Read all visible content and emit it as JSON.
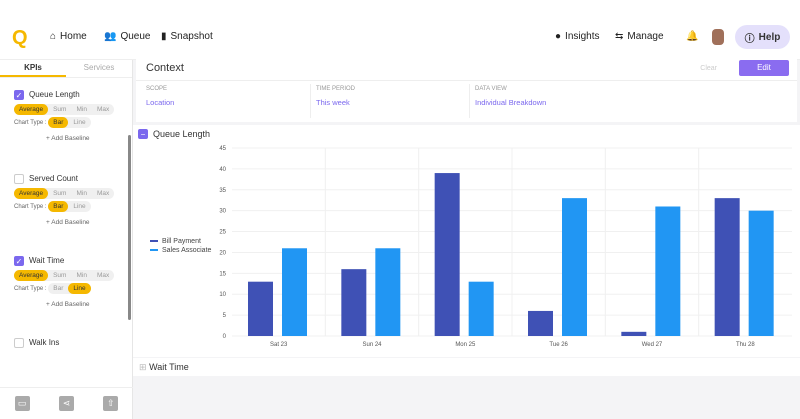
{
  "nav": {
    "home": "Home",
    "queue": "Queue",
    "snapshot": "Snapshot",
    "insights": "Insights",
    "manage": "Manage",
    "help": "Help"
  },
  "sidebar": {
    "tabs": [
      "KPIs",
      "Services"
    ],
    "chart_type_label": "Chart Type :",
    "add_baseline": "+ Add Baseline",
    "aggs": [
      "Average",
      "Sum",
      "Min",
      "Max"
    ],
    "types": [
      "Bar",
      "Line"
    ],
    "kpis": [
      {
        "name": "Queue Length",
        "checked": true,
        "type": "Bar"
      },
      {
        "name": "Served Count",
        "checked": false,
        "type": "Bar"
      },
      {
        "name": "Wait Time",
        "checked": true,
        "type": "Line"
      },
      {
        "name": "Walk Ins",
        "checked": false
      }
    ]
  },
  "context": {
    "title": "Context",
    "clear": "Clear",
    "edit": "Edit",
    "scope_label": "SCOPE",
    "scope": "Location",
    "period_label": "TIME PERIOD",
    "period": "This week",
    "view_label": "DATA VIEW",
    "view": "Individual Breakdown"
  },
  "panels": {
    "queue_length": "Queue Length",
    "wait_time": "Wait Time"
  },
  "chart_data": {
    "type": "bar",
    "categories": [
      "Sat 23",
      "Sun 24",
      "Mon 25",
      "Tue 26",
      "Wed 27",
      "Thu 28"
    ],
    "ylim": [
      0,
      45
    ],
    "yticks": [
      0,
      5,
      10,
      15,
      20,
      25,
      30,
      35,
      40,
      45
    ],
    "grid": true,
    "legend": "left",
    "series": [
      {
        "name": "Bill Payment",
        "color": "#3f51b5",
        "values": [
          13,
          16,
          39,
          6,
          1,
          33
        ]
      },
      {
        "name": "Sales Associate",
        "color": "#2196f3",
        "values": [
          21,
          21,
          13,
          33,
          31,
          30
        ]
      }
    ]
  }
}
